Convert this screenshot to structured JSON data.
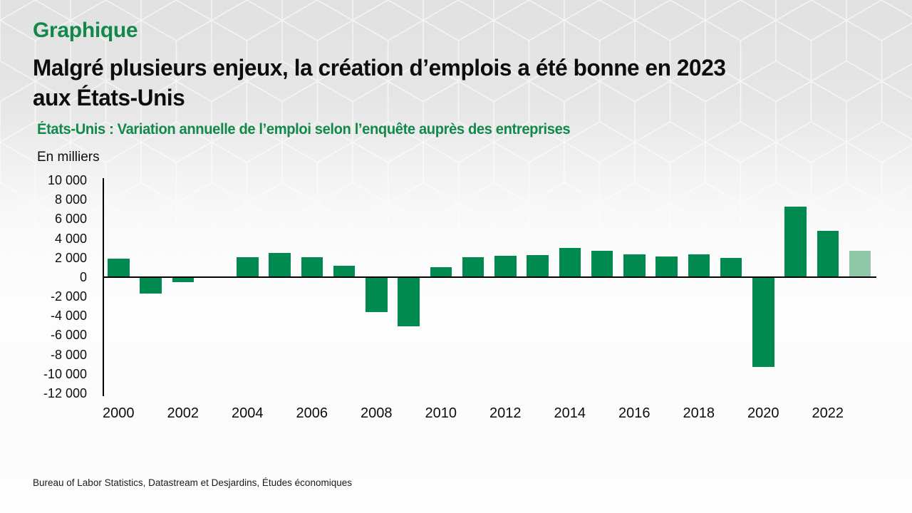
{
  "header": {
    "kicker": "Graphique",
    "title_line1": "Malgré plusieurs enjeux, la création d’emplois a été bonne en 2023",
    "title_line2": "aux États-Unis",
    "subtitle": "États-Unis : Variation annuelle de l’emploi selon l’enquête auprès des entreprises"
  },
  "chart_data": {
    "type": "bar",
    "title": "États-Unis : Variation annuelle de l’emploi selon l’enquête auprès des entreprises",
    "xlabel": "",
    "ylabel": "En milliers",
    "categories": [
      2000,
      2001,
      2002,
      2003,
      2004,
      2005,
      2006,
      2007,
      2008,
      2009,
      2010,
      2011,
      2012,
      2013,
      2014,
      2015,
      2016,
      2017,
      2018,
      2019,
      2020,
      2021,
      2022,
      2023
    ],
    "values": [
      1935,
      -1735,
      -508,
      100,
      2019,
      2484,
      2071,
      1140,
      -3576,
      -5087,
      1022,
      2074,
      2193,
      2301,
      3004,
      2722,
      2344,
      2110,
      2314,
      2001,
      -9273,
      7270,
      4793,
      2750
    ],
    "last_bar_is_estimate": true,
    "ylim": [
      -12000,
      10000
    ],
    "ytick_values": [
      10000,
      8000,
      6000,
      4000,
      2000,
      0,
      -2000,
      -4000,
      -6000,
      -8000,
      -10000,
      -12000
    ],
    "ytick_labels": [
      "10 000",
      "8 000",
      "6 000",
      "4 000",
      "2 000",
      "0",
      "-2 000",
      "-4 000",
      "-6 000",
      "-8 000",
      "-10 000",
      "-12 000"
    ],
    "xtick_labels": [
      "2000",
      "2002",
      "2004",
      "2006",
      "2008",
      "2010",
      "2012",
      "2014",
      "2016",
      "2018",
      "2020",
      "2022"
    ],
    "grid": false,
    "legend": null,
    "colors": {
      "bar": "#008a50",
      "estimate_bar": "#8ec8a7",
      "axis": "#000000"
    }
  },
  "footer": {
    "source": "Bureau of Labor Statistics, Datastream et Desjardins, Études économiques"
  },
  "colors": {
    "accent_green": "#12894a",
    "title_text": "#0d0d0d",
    "background_top": "#e2e2e2"
  }
}
